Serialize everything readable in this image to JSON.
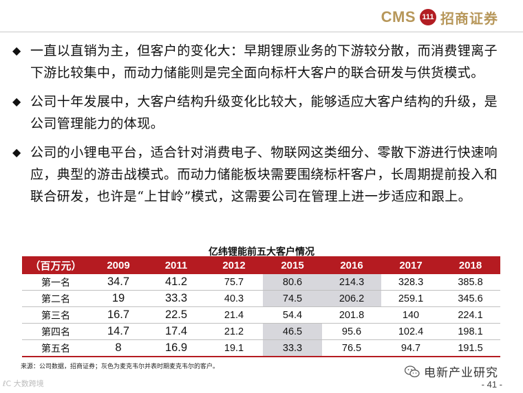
{
  "header": {
    "brand_en": "CMS",
    "brand_logo_text": "111",
    "brand_cn": "招商证券"
  },
  "bullets": [
    {
      "text": "一直以直销为主，但客户的变化大：早期锂原业务的下游较分散，而消费锂离子下游比较集中，而动力储能则是完全面向标杆大客户的联合研发与供货模式。"
    },
    {
      "text": "公司十年发展中，大客户结构升级变化比较大，能够适应大客户结构的升级，是公司管理能力的体现。"
    },
    {
      "text": "公司的小锂电平台，适合针对消费电子、物联网这类细分、零散下游进行快速响应，典型的游击战模式。而动力储能板块需要围绕标杆客户，长周期提前投入和联合研发，也许是“上甘岭”模式，这需要公司在管理上进一步适应和跟上。"
    }
  ],
  "table": {
    "title": "亿纬锂能前五大客户情况",
    "columns": [
      "（百万元）",
      "2009",
      "2011",
      "2012",
      "2015",
      "2016",
      "2017",
      "2018"
    ],
    "rows": [
      {
        "name": "第一名",
        "values": [
          "34.7",
          "41.2",
          "75.7",
          "80.6",
          "214.3",
          "328.3",
          "385.8"
        ]
      },
      {
        "name": "第二名",
        "values": [
          "19",
          "33.3",
          "40.3",
          "74.5",
          "206.2",
          "259.1",
          "345.6"
        ]
      },
      {
        "name": "第三名",
        "values": [
          "16.7",
          "22.5",
          "21.4",
          "54.4",
          "201.8",
          "140",
          "224.1"
        ]
      },
      {
        "name": "第四名",
        "values": [
          "14.7",
          "17.4",
          "21.2",
          "46.5",
          "95.6",
          "102.4",
          "198.1"
        ]
      },
      {
        "name": "第五名",
        "values": [
          "8",
          "16.9",
          "19.1",
          "33.3",
          "76.5",
          "94.7",
          "191.5"
        ]
      }
    ],
    "shaded_cells": [
      [
        0,
        3
      ],
      [
        0,
        4
      ],
      [
        1,
        3
      ],
      [
        1,
        4
      ],
      [
        3,
        3
      ],
      [
        4,
        3
      ]
    ],
    "header_color": "#b51b21",
    "shade_color": "#d7d7dc"
  },
  "source": "来源：公司数据，招商证券；灰色为麦克韦尔并表时期麦克韦尔的客户。",
  "watermark": "电新产业研究",
  "corner_mark": "ℓC 大数跨境",
  "page_number": "- 41 -"
}
